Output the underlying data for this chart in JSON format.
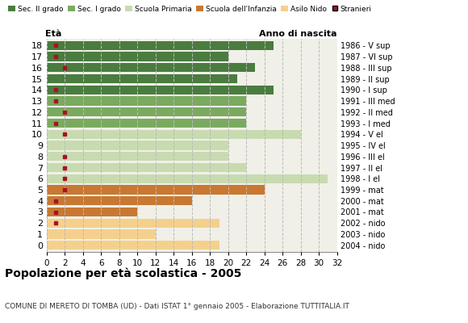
{
  "ages": [
    18,
    17,
    16,
    15,
    14,
    13,
    12,
    11,
    10,
    9,
    8,
    7,
    6,
    5,
    4,
    3,
    2,
    1,
    0
  ],
  "years": [
    "1986 - V sup",
    "1987 - VI sup",
    "1988 - III sup",
    "1989 - II sup",
    "1990 - I sup",
    "1991 - III med",
    "1992 - II med",
    "1993 - I med",
    "1994 - V el",
    "1995 - IV el",
    "1996 - III el",
    "1997 - II el",
    "1998 - I el",
    "1999 - mat",
    "2000 - mat",
    "2001 - mat",
    "2002 - nido",
    "2003 - nido",
    "2004 - nido"
  ],
  "bar_values": [
    25,
    20,
    23,
    21,
    25,
    22,
    22,
    22,
    28,
    20,
    20,
    22,
    31,
    24,
    16,
    10,
    19,
    12,
    19
  ],
  "stranieri": [
    1,
    1,
    2,
    0,
    1,
    1,
    2,
    1,
    2,
    0,
    2,
    2,
    2,
    2,
    1,
    1,
    1,
    0,
    0
  ],
  "categories": {
    "Sec. II grado": {
      "ages": [
        14,
        15,
        16,
        17,
        18
      ],
      "color": "#4a7c3f"
    },
    "Sec. I grado": {
      "ages": [
        11,
        12,
        13
      ],
      "color": "#7aaa5f"
    },
    "Scuola Primaria": {
      "ages": [
        6,
        7,
        8,
        9,
        10
      ],
      "color": "#c8dbb0"
    },
    "Scuola dell'Infanzia": {
      "ages": [
        3,
        4,
        5
      ],
      "color": "#c87832"
    },
    "Asilo Nido": {
      "ages": [
        0,
        1,
        2
      ],
      "color": "#f5d08c"
    }
  },
  "stranieri_color": "#aa1122",
  "grid_color": "#bbbbbb",
  "bg_color": "#f0f0e8",
  "xlim": [
    0,
    32
  ],
  "xticks": [
    0,
    2,
    4,
    6,
    8,
    10,
    12,
    14,
    16,
    18,
    20,
    22,
    24,
    26,
    28,
    30,
    32
  ],
  "title": "Popolazione per età scolastica - 2005",
  "subtitle": "COMUNE DI MERETO DI TOMBA (UD) - Dati ISTAT 1° gennaio 2005 - Elaborazione TUTTITALIA.IT",
  "ylabel_left": "Età",
  "ylabel_right": "Anno di nascita",
  "legend_labels": [
    "Sec. II grado",
    "Sec. I grado",
    "Scuola Primaria",
    "Scuola dell'Infanzia",
    "Asilo Nido",
    "Stranieri"
  ],
  "legend_colors": [
    "#4a7c3f",
    "#7aaa5f",
    "#c8dbb0",
    "#c87832",
    "#f5d08c",
    "#aa1122"
  ],
  "bar_height": 0.82
}
